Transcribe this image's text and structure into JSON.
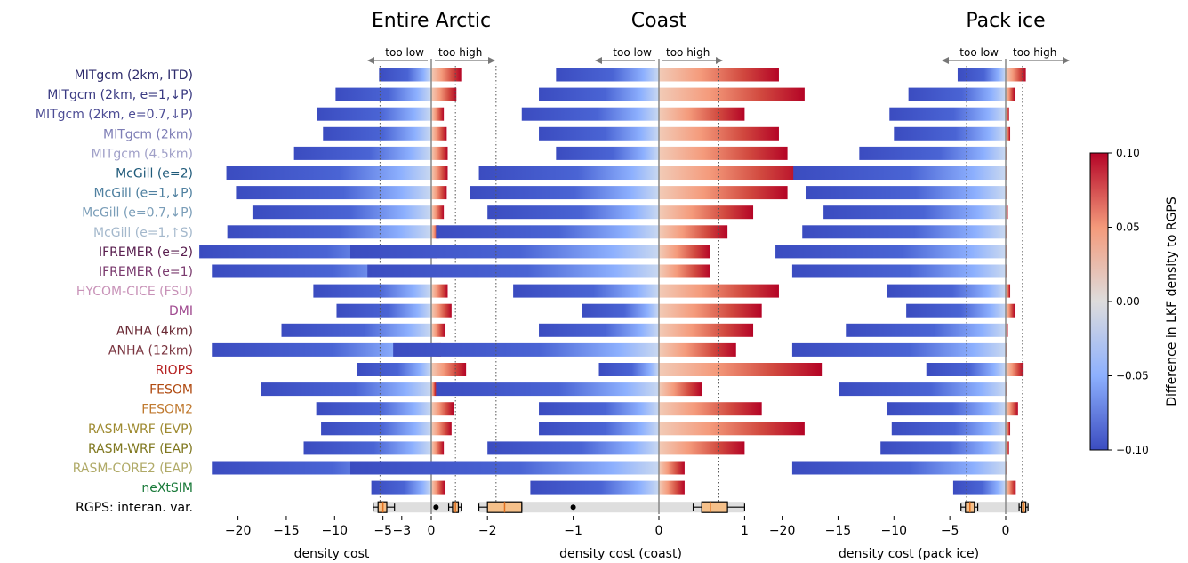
{
  "models": [
    {
      "name": "MITgcm (2km, ITD)",
      "color": "#2c2a6b"
    },
    {
      "name": "MITgcm (2km, e=1,↓P)",
      "color": "#3a3a82"
    },
    {
      "name": "MITgcm (2km, e=0.7,↓P)",
      "color": "#4d4d95"
    },
    {
      "name": "MITgcm (2km)",
      "color": "#7d7db5"
    },
    {
      "name": "MITgcm (4.5km)",
      "color": "#a0a0c8"
    },
    {
      "name": "McGill (e=2)",
      "color": "#1f5a7a"
    },
    {
      "name": "McGill (e=1,↓P)",
      "color": "#4f80a0"
    },
    {
      "name": "McGill (e=0.7,↓P)",
      "color": "#7a9db8"
    },
    {
      "name": "McGill (e=1,↑S)",
      "color": "#a4b8cc"
    },
    {
      "name": "IFREMER (e=2)",
      "color": "#5a2050"
    },
    {
      "name": "IFREMER (e=1)",
      "color": "#7a3a6e"
    },
    {
      "name": "HYCOM-CICE (FSU)",
      "color": "#c892b8"
    },
    {
      "name": "DMI",
      "color": "#a04a90"
    },
    {
      "name": "ANHA (4km)",
      "color": "#6a2a35"
    },
    {
      "name": "ANHA (12km)",
      "color": "#7a3540"
    },
    {
      "name": "RIOPS",
      "color": "#b52020"
    },
    {
      "name": "FESOM",
      "color": "#b04a10"
    },
    {
      "name": "FESOM2",
      "color": "#c07a30"
    },
    {
      "name": "RASM-WRF (EVP)",
      "color": "#9e8a30"
    },
    {
      "name": "RASM-WRF (EAP)",
      "color": "#807820"
    },
    {
      "name": "RASM-CORE2 (EAP)",
      "color": "#b0aa68"
    },
    {
      "name": "neXtSIM",
      "color": "#1a7a3a"
    },
    {
      "name": "RGPS: interan. var.",
      "color": "#000000"
    }
  ],
  "direction_labels": {
    "low": "too low",
    "high": "too high"
  },
  "colorbar": {
    "label": "Difference in LKF density to RGPS",
    "ticks": [
      "0.10",
      "0.05",
      "0.00",
      "−0.05",
      "−0.10"
    ],
    "tick_values": [
      0.1,
      0.05,
      0.0,
      -0.05,
      -0.1
    ]
  },
  "chart_data": [
    {
      "type": "bar",
      "title": "Entire Arctic",
      "xlabel": "density cost",
      "xlim": [
        -24,
        3
      ],
      "xticks": [
        -20,
        -15,
        -10,
        -5,
        0
      ],
      "xticklabels": [
        "−20",
        "−15",
        "−10",
        "−5",
        "0"
      ],
      "guide_lines": [
        -5.3,
        2.5
      ],
      "series": [
        {
          "negative": [
            -5.4,
            -9.9,
            -11.8,
            -11.2,
            -14.2,
            -21.2,
            -20.2,
            -18.5,
            -21.1,
            -24.0,
            -22.7,
            -12.2,
            -9.8,
            -15.5,
            -22.7,
            -7.7,
            -17.6,
            -11.9,
            -11.4,
            -13.2,
            -22.7,
            -6.2
          ],
          "positive": [
            3.1,
            2.6,
            1.3,
            1.6,
            1.7,
            1.7,
            1.6,
            1.3,
            0.8,
            0.6,
            0.6,
            1.7,
            2.1,
            1.4,
            1.0,
            3.6,
            0.5,
            2.3,
            2.1,
            1.3,
            0.4,
            1.4
          ]
        }
      ],
      "rgps_box": {
        "whisker_low": -6.0,
        "q1": -5.5,
        "median": -5.0,
        "q3": -4.6,
        "whisker_high": -3.8,
        "box2_low": 2.2,
        "box2_median": 2.5,
        "box2_high": 2.8,
        "box2_whisker_low": 1.8,
        "box2_whisker_high": 3.1,
        "shade": [
          -6.0,
          3.1
        ],
        "outliers": []
      }
    },
    {
      "type": "bar",
      "title": "Coast",
      "xlabel": "density cost (coast)",
      "xlim": [
        -3.6,
        1.6
      ],
      "xticks": [
        -3,
        -2,
        -1,
        0,
        1
      ],
      "xticklabels": [
        "−3",
        "−2",
        "−1",
        "0",
        "1"
      ],
      "guide_lines": [
        -1.9,
        0.7
      ],
      "series": [
        {
          "negative": [
            -1.2,
            -1.4,
            -1.6,
            -1.4,
            -1.2,
            -2.1,
            -2.2,
            -2.0,
            -2.6,
            -3.6,
            -3.4,
            -1.7,
            -0.9,
            -1.4,
            -3.1,
            -0.7,
            -2.6,
            -1.4,
            -1.4,
            -2.0,
            -3.6,
            -1.5
          ],
          "positive": [
            1.4,
            1.7,
            1.0,
            1.4,
            1.5,
            1.7,
            1.5,
            1.1,
            0.8,
            0.6,
            0.6,
            1.4,
            1.2,
            1.1,
            0.9,
            1.9,
            0.5,
            1.2,
            1.7,
            1.0,
            0.3,
            0.3
          ]
        }
      ],
      "rgps_box": {
        "whisker_low": -2.1,
        "q1": -2.0,
        "median": -1.8,
        "q3": -1.6,
        "whisker_high": -1.6,
        "box2_low": 0.5,
        "box2_median": 0.6,
        "box2_high": 0.8,
        "box2_whisker_low": 0.4,
        "box2_whisker_high": 1.0,
        "shade": [
          -2.1,
          1.0
        ],
        "outliers": [
          -2.6,
          -1.0
        ]
      }
    },
    {
      "type": "bar",
      "title": "Pack ice",
      "xlabel": "density cost (pack ice)",
      "xlim": [
        -20.5,
        2.8
      ],
      "xticks": [
        -20,
        -15,
        -10,
        -5,
        0
      ],
      "xticklabels": [
        "−20",
        "−15",
        "−10",
        "−5",
        "0"
      ],
      "guide_lines": [
        -3.5,
        1.5
      ],
      "series": [
        {
          "negative": [
            -4.3,
            -8.7,
            -10.4,
            -10.0,
            -13.1,
            -19.0,
            -17.9,
            -16.3,
            -18.2,
            -20.6,
            -19.1,
            -10.6,
            -8.9,
            -14.3,
            -19.1,
            -7.1,
            -14.9,
            -10.6,
            -10.2,
            -11.2,
            -19.1,
            -4.7
          ],
          "positive": [
            1.8,
            0.8,
            0.3,
            0.4,
            0.1,
            0.1,
            0.1,
            0.2,
            0.1,
            0.1,
            0.1,
            0.4,
            0.8,
            0.2,
            0.1,
            1.6,
            0.1,
            1.1,
            0.4,
            0.3,
            0.1,
            0.9
          ]
        }
      ],
      "rgps_box": {
        "whisker_low": -4.0,
        "q1": -3.6,
        "median": -3.2,
        "q3": -2.8,
        "whisker_high": -2.5,
        "box2_low": 1.4,
        "box2_median": 1.6,
        "box2_high": 1.8,
        "box2_whisker_low": 1.2,
        "box2_whisker_high": 2.0,
        "shade": [
          -4.0,
          2.0
        ],
        "outliers": []
      }
    }
  ]
}
